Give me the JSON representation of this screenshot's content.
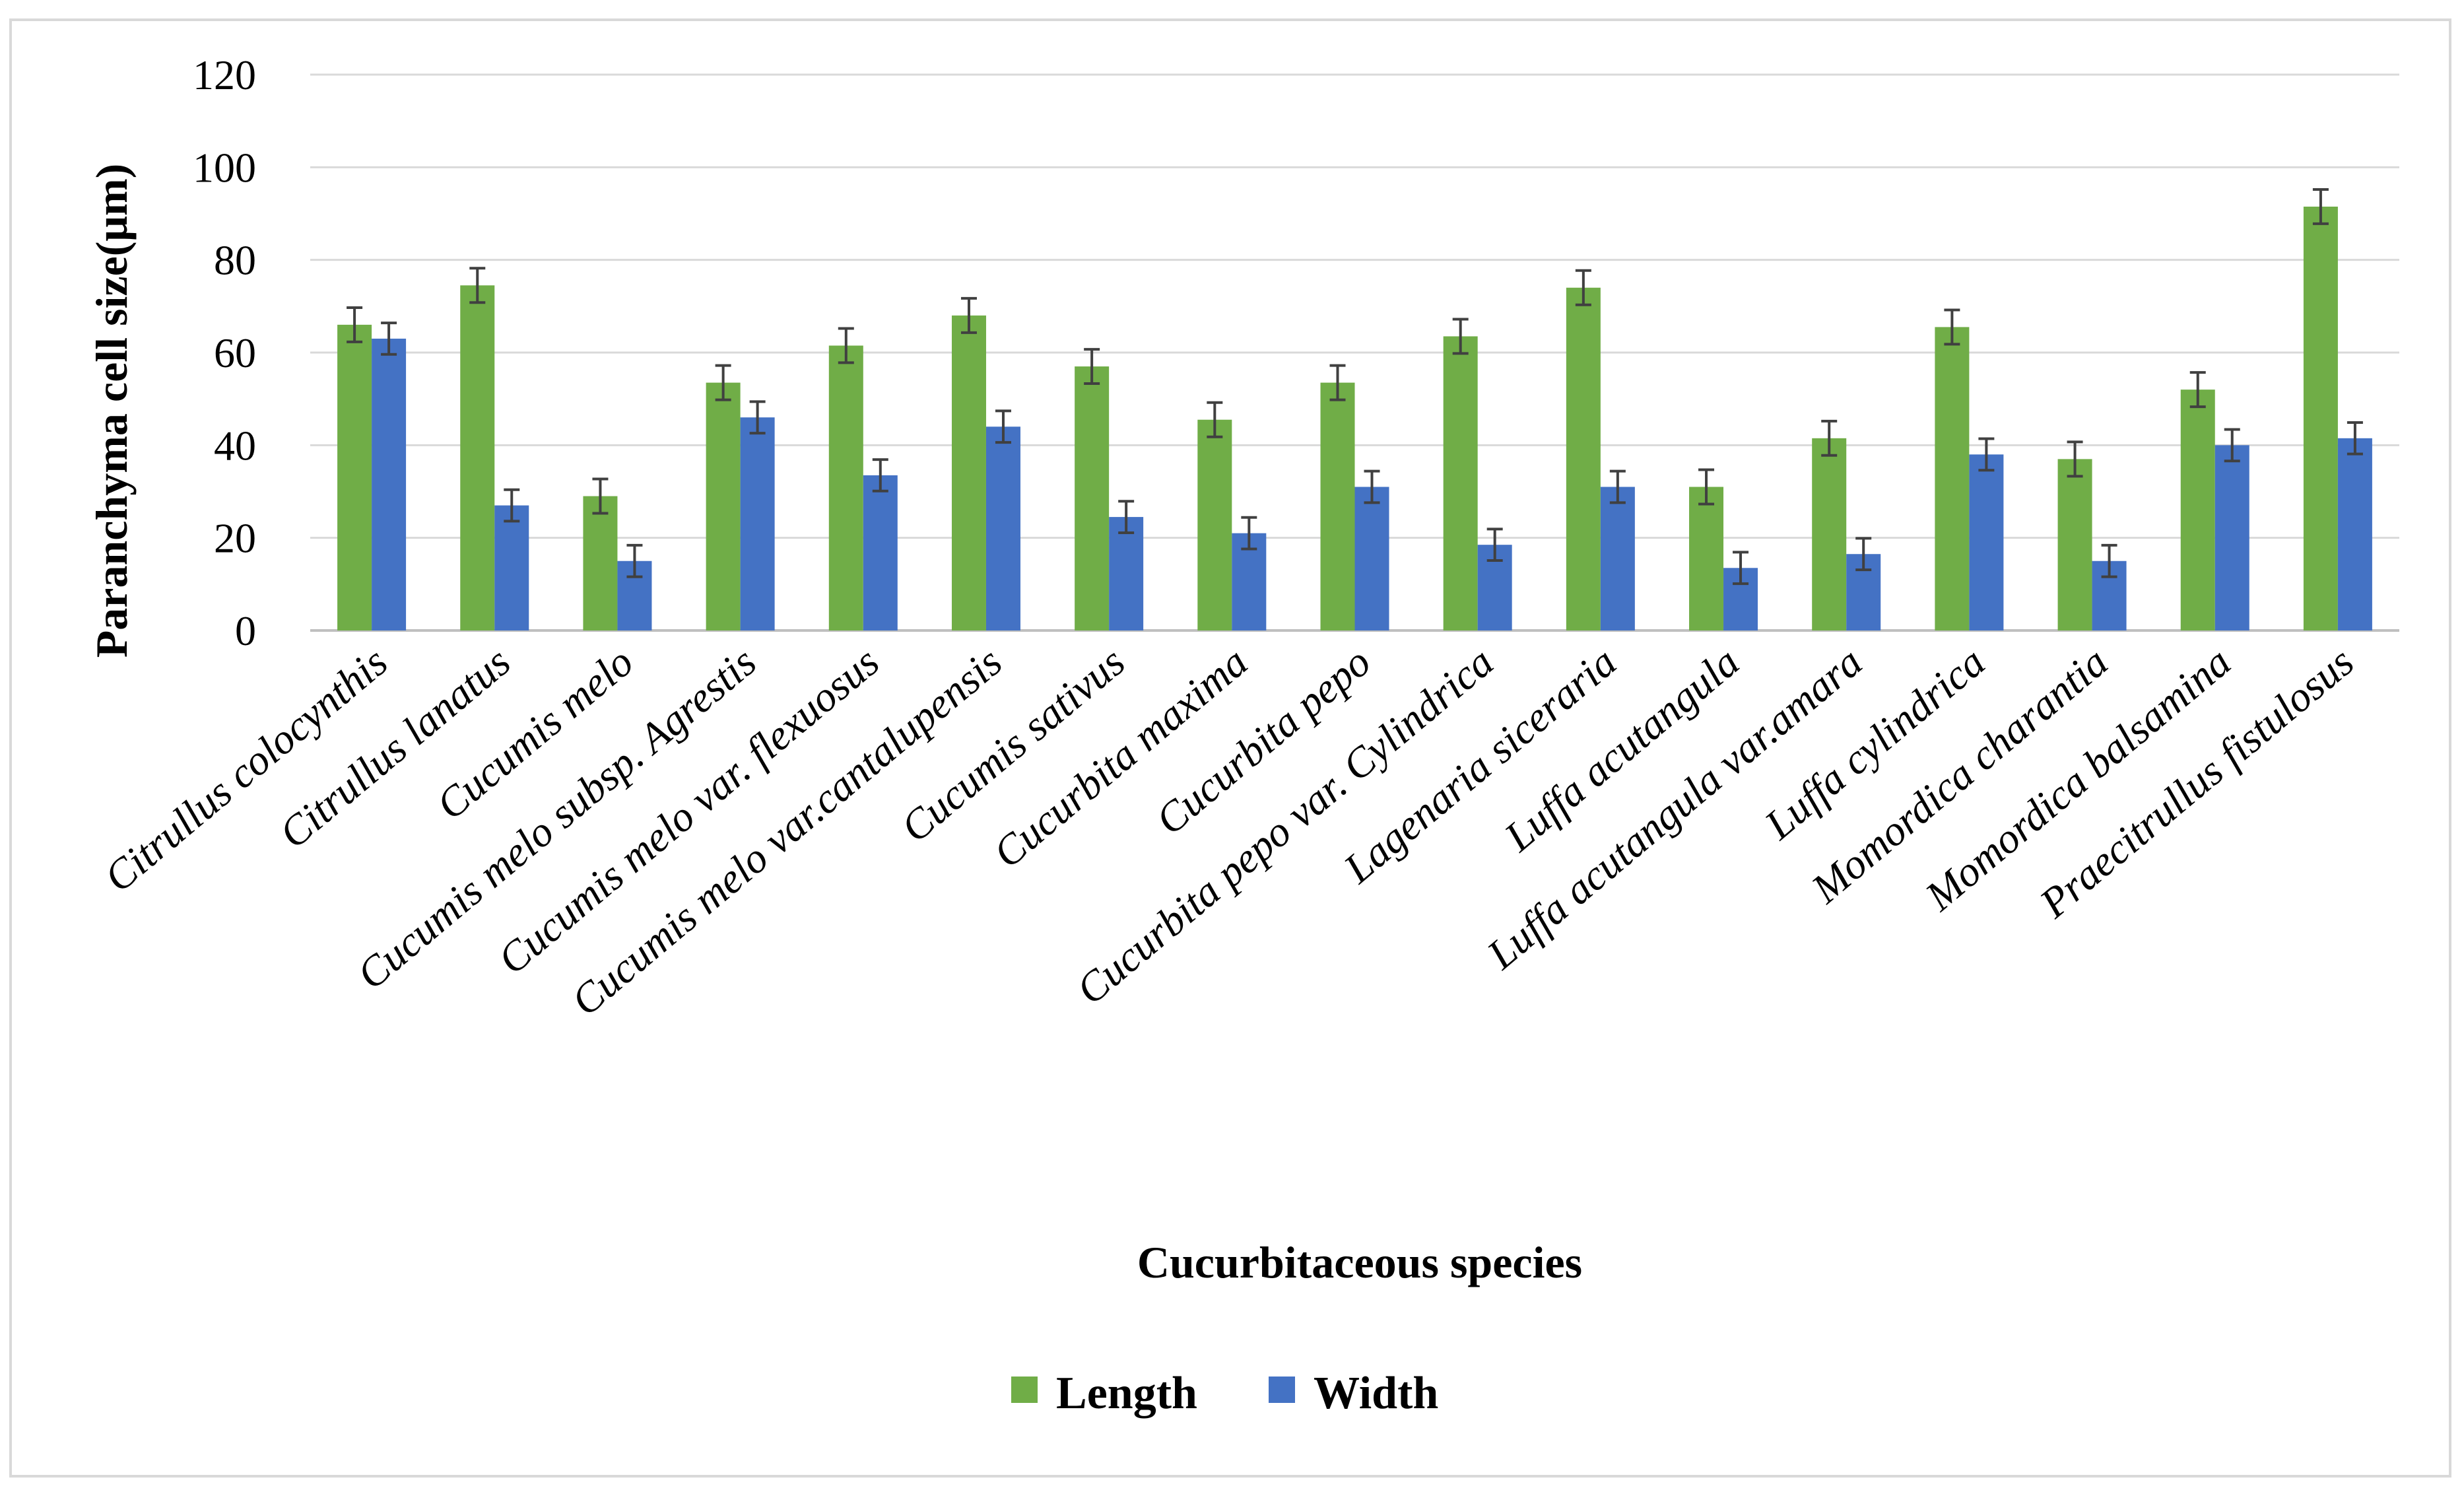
{
  "chart_data": {
    "type": "bar",
    "title": "",
    "xlabel": "Cucurbitaceous  species",
    "ylabel": "Paranchyma  cell size(μm)",
    "ylim": [
      0,
      120
    ],
    "yticks": [
      0,
      20,
      40,
      60,
      80,
      100,
      120
    ],
    "ytick_labels": [
      "0",
      "20",
      "40",
      "60",
      "80",
      "100",
      "120"
    ],
    "grid": true,
    "legend_position": "bottom",
    "categories": [
      "Citrullus colocynthis",
      "Citrullus lanatus",
      "Cucumis melo",
      "Cucumis melo subsp. Agrestis",
      "Cucumis melo var. flexuosus",
      "Cucumis melo var.cantalupensis",
      "Cucumis sativus",
      "Cucurbita maxima",
      "Cucurbita pepo",
      "Cucurbita pepo var. Cylindrica",
      "Lagenaria siceraria",
      "Luffa acutangula",
      "Luffa acutangula var.amara",
      "Luffa cylindrica",
      "Momordica charantia",
      "Momordica balsamina",
      "Praecitrullus fistulosus"
    ],
    "series": [
      {
        "name": "Length",
        "color": "#70ad47",
        "values": [
          66,
          74.5,
          29,
          53.5,
          61.5,
          68,
          57,
          45.5,
          53.5,
          63.5,
          74,
          31,
          41.5,
          65.5,
          37,
          52,
          91.5
        ],
        "error": [
          3.7,
          3.7,
          3.7,
          3.7,
          3.7,
          3.7,
          3.7,
          3.7,
          3.7,
          3.7,
          3.7,
          3.7,
          3.7,
          3.7,
          3.7,
          3.7,
          3.7
        ]
      },
      {
        "name": "Width",
        "color": "#4472c4",
        "values": [
          63,
          27,
          15,
          46,
          33.5,
          44,
          24.5,
          21,
          31,
          18.5,
          31,
          13.5,
          16.5,
          38,
          15,
          40,
          41.5
        ],
        "error": [
          3.4,
          3.4,
          3.4,
          3.4,
          3.4,
          3.4,
          3.4,
          3.4,
          3.4,
          3.4,
          3.4,
          3.4,
          3.4,
          3.4,
          3.4,
          3.4,
          3.4
        ]
      }
    ]
  }
}
